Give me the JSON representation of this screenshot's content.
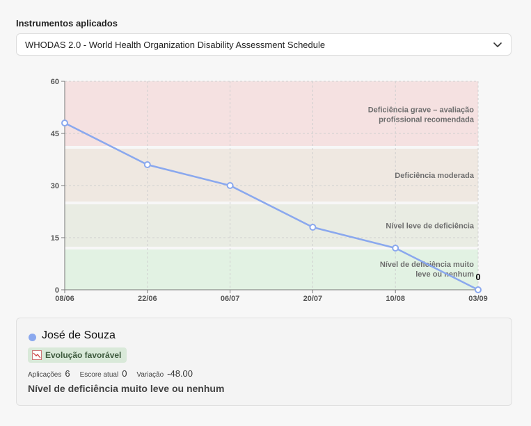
{
  "header": {
    "section_label": "Instrumentos aplicados",
    "selected_instrument": "WHODAS 2.0 - World Health Organization Disability Assessment Schedule"
  },
  "chart_data": {
    "type": "line",
    "x": [
      "08/06",
      "22/06",
      "06/07",
      "20/07",
      "10/08",
      "03/09"
    ],
    "series": [
      {
        "values": [
          48,
          36,
          30,
          18,
          12,
          0
        ],
        "color": "#8aa8ee"
      }
    ],
    "ylim": [
      0,
      60
    ],
    "yticks": [
      0,
      15,
      30,
      45,
      60
    ],
    "grid": true,
    "last_point_label": "0",
    "bands": [
      {
        "from": 0,
        "to": 12,
        "label_lines": [
          "Nível de deficiência muito",
          "leve ou nenhum"
        ],
        "color": "#e2f2e3"
      },
      {
        "from": 12,
        "to": 25,
        "label_lines": [
          "Nível leve de deficiência"
        ],
        "color": "#e9ece3"
      },
      {
        "from": 25,
        "to": 41,
        "label_lines": [
          "Deficiência moderada"
        ],
        "color": "#efe8e1"
      },
      {
        "from": 41,
        "to": 60,
        "label_lines": [
          "Deficiência grave – avaliação",
          "profissional recomendada"
        ],
        "color": "#f5e1e1"
      }
    ]
  },
  "patient": {
    "name": "José de Souza",
    "color": "#8aa8ee",
    "trend_label": "Evolução favorável",
    "applications_label": "Aplicações",
    "applications_value": "6",
    "current_score_label": "Escore atual",
    "current_score_value": "0",
    "variation_label": "Variação",
    "variation_value": "-48.00",
    "level": "Nível de deficiência muito leve ou nenhum"
  }
}
